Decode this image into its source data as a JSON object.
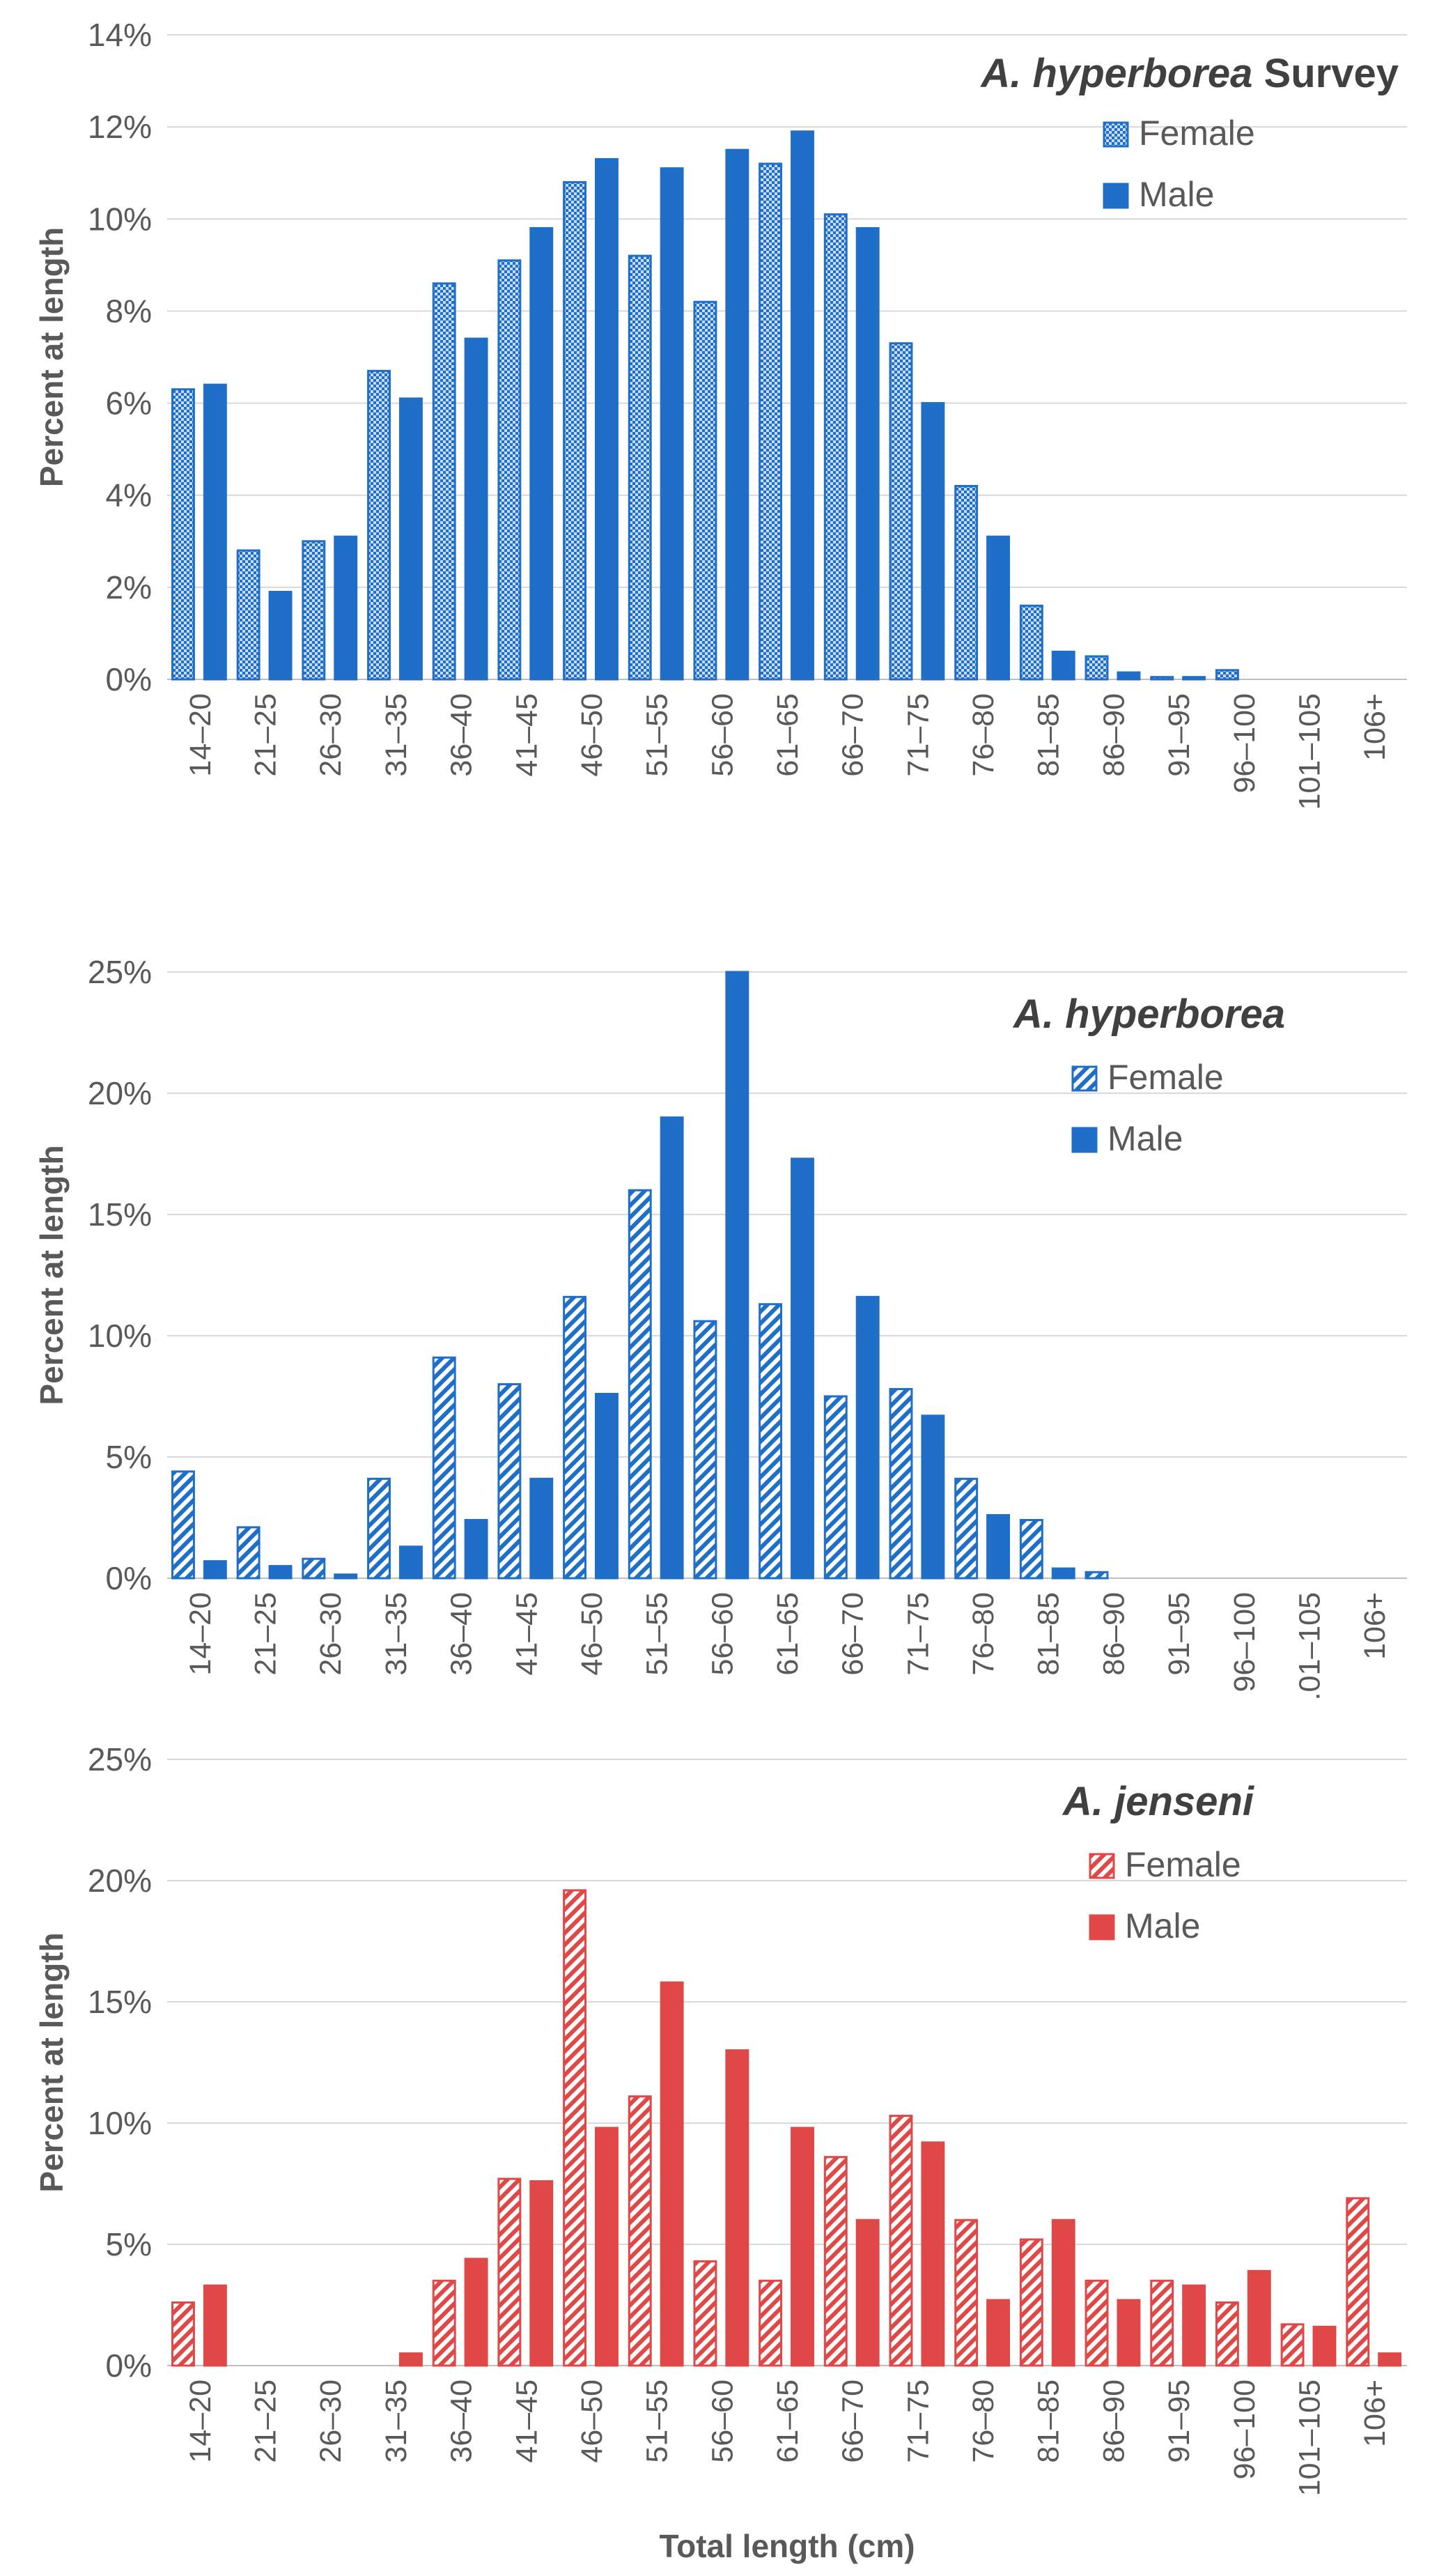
{
  "chart_data": [
    {
      "type": "bar",
      "title": "A. hyperborea Survey",
      "title_italic": "A. hyperborea",
      "title_rest": " Survey",
      "xlabel": "",
      "ylabel": "Percent at length",
      "ylim": [
        0,
        14
      ],
      "yticks": [
        "0%",
        "2%",
        "4%",
        "6%",
        "8%",
        "10%",
        "12%",
        "14%"
      ],
      "legend": "top-right",
      "categories": [
        "14–20",
        "21–25",
        "26–30",
        "31–35",
        "36–40",
        "41–45",
        "46–50",
        "51–55",
        "56–60",
        "61–65",
        "66–70",
        "71–75",
        "76–80",
        "81–85",
        "86–90",
        "91–95",
        "96–100",
        "101–105",
        "106+"
      ],
      "series": [
        {
          "name": "Female",
          "pattern": "dots",
          "color": "#1f6fc8",
          "values": [
            6.3,
            2.8,
            3.0,
            6.7,
            8.6,
            9.1,
            10.8,
            9.2,
            8.2,
            11.2,
            10.1,
            7.3,
            4.2,
            1.6,
            0.5,
            0.05,
            0.2,
            0,
            0
          ]
        },
        {
          "name": "Male",
          "pattern": "solid",
          "color": "#1f6fc8",
          "values": [
            6.4,
            1.9,
            3.1,
            6.1,
            7.4,
            9.8,
            11.3,
            11.1,
            11.5,
            11.9,
            9.8,
            6.0,
            3.1,
            0.6,
            0.15,
            0.05,
            0,
            0,
            0
          ]
        }
      ]
    },
    {
      "type": "bar",
      "title": "A. hyperborea",
      "title_italic": "A. hyperborea",
      "title_rest": "",
      "xlabel": "",
      "ylabel": "Percent at length",
      "ylim": [
        0,
        25
      ],
      "yticks": [
        "0%",
        "5%",
        "10%",
        "15%",
        "20%",
        "25%"
      ],
      "legend": "top-right",
      "categories": [
        "14–20",
        "21–25",
        "26–30",
        "31–35",
        "36–40",
        "41–45",
        "46–50",
        "51–55",
        "56–60",
        "61–65",
        "66–70",
        "71–75",
        "76–80",
        "81–85",
        "86–90",
        "91–95",
        "96–100",
        ".01–105",
        "106+"
      ],
      "series": [
        {
          "name": "Female",
          "pattern": "hatch",
          "color": "#1f6fc8",
          "values": [
            4.4,
            2.1,
            0.8,
            4.1,
            9.1,
            8.0,
            11.6,
            16.0,
            10.6,
            11.3,
            7.5,
            7.8,
            4.1,
            2.4,
            0.25,
            0,
            0,
            0,
            0
          ]
        },
        {
          "name": "Male",
          "pattern": "solid",
          "color": "#1f6fc8",
          "values": [
            0.7,
            0.5,
            0.15,
            1.3,
            2.4,
            4.1,
            7.6,
            19.0,
            25.0,
            17.3,
            11.6,
            6.7,
            2.6,
            0.4,
            0,
            0,
            0,
            0,
            0
          ]
        }
      ]
    },
    {
      "type": "bar",
      "title": "A. jenseni",
      "title_italic": "A. jenseni",
      "title_rest": "",
      "xlabel": "Total length (cm)",
      "ylabel": "Percent at length",
      "ylim": [
        0,
        25
      ],
      "yticks": [
        "0%",
        "5%",
        "10%",
        "15%",
        "20%",
        "25%"
      ],
      "legend": "top-right",
      "categories": [
        "14–20",
        "21–25",
        "26–30",
        "31–35",
        "36–40",
        "41–45",
        "46–50",
        "51–55",
        "56–60",
        "61–65",
        "66–70",
        "71–75",
        "76–80",
        "81–85",
        "86–90",
        "91–95",
        "96–100",
        "101–105",
        "106+"
      ],
      "series": [
        {
          "name": "Female",
          "pattern": "hatch",
          "color": "#e04848",
          "values": [
            2.6,
            0,
            0,
            0,
            3.5,
            7.7,
            19.6,
            11.1,
            4.3,
            3.5,
            8.6,
            10.3,
            6.0,
            5.2,
            3.5,
            3.5,
            2.6,
            1.7,
            6.9
          ]
        },
        {
          "name": "Male",
          "pattern": "solid",
          "color": "#e04848",
          "values": [
            3.3,
            0,
            0,
            0.5,
            4.4,
            7.6,
            9.8,
            15.8,
            13.0,
            9.8,
            6.0,
            9.2,
            2.7,
            6.0,
            2.7,
            3.3,
            3.9,
            1.6,
            0.5
          ]
        }
      ]
    }
  ]
}
